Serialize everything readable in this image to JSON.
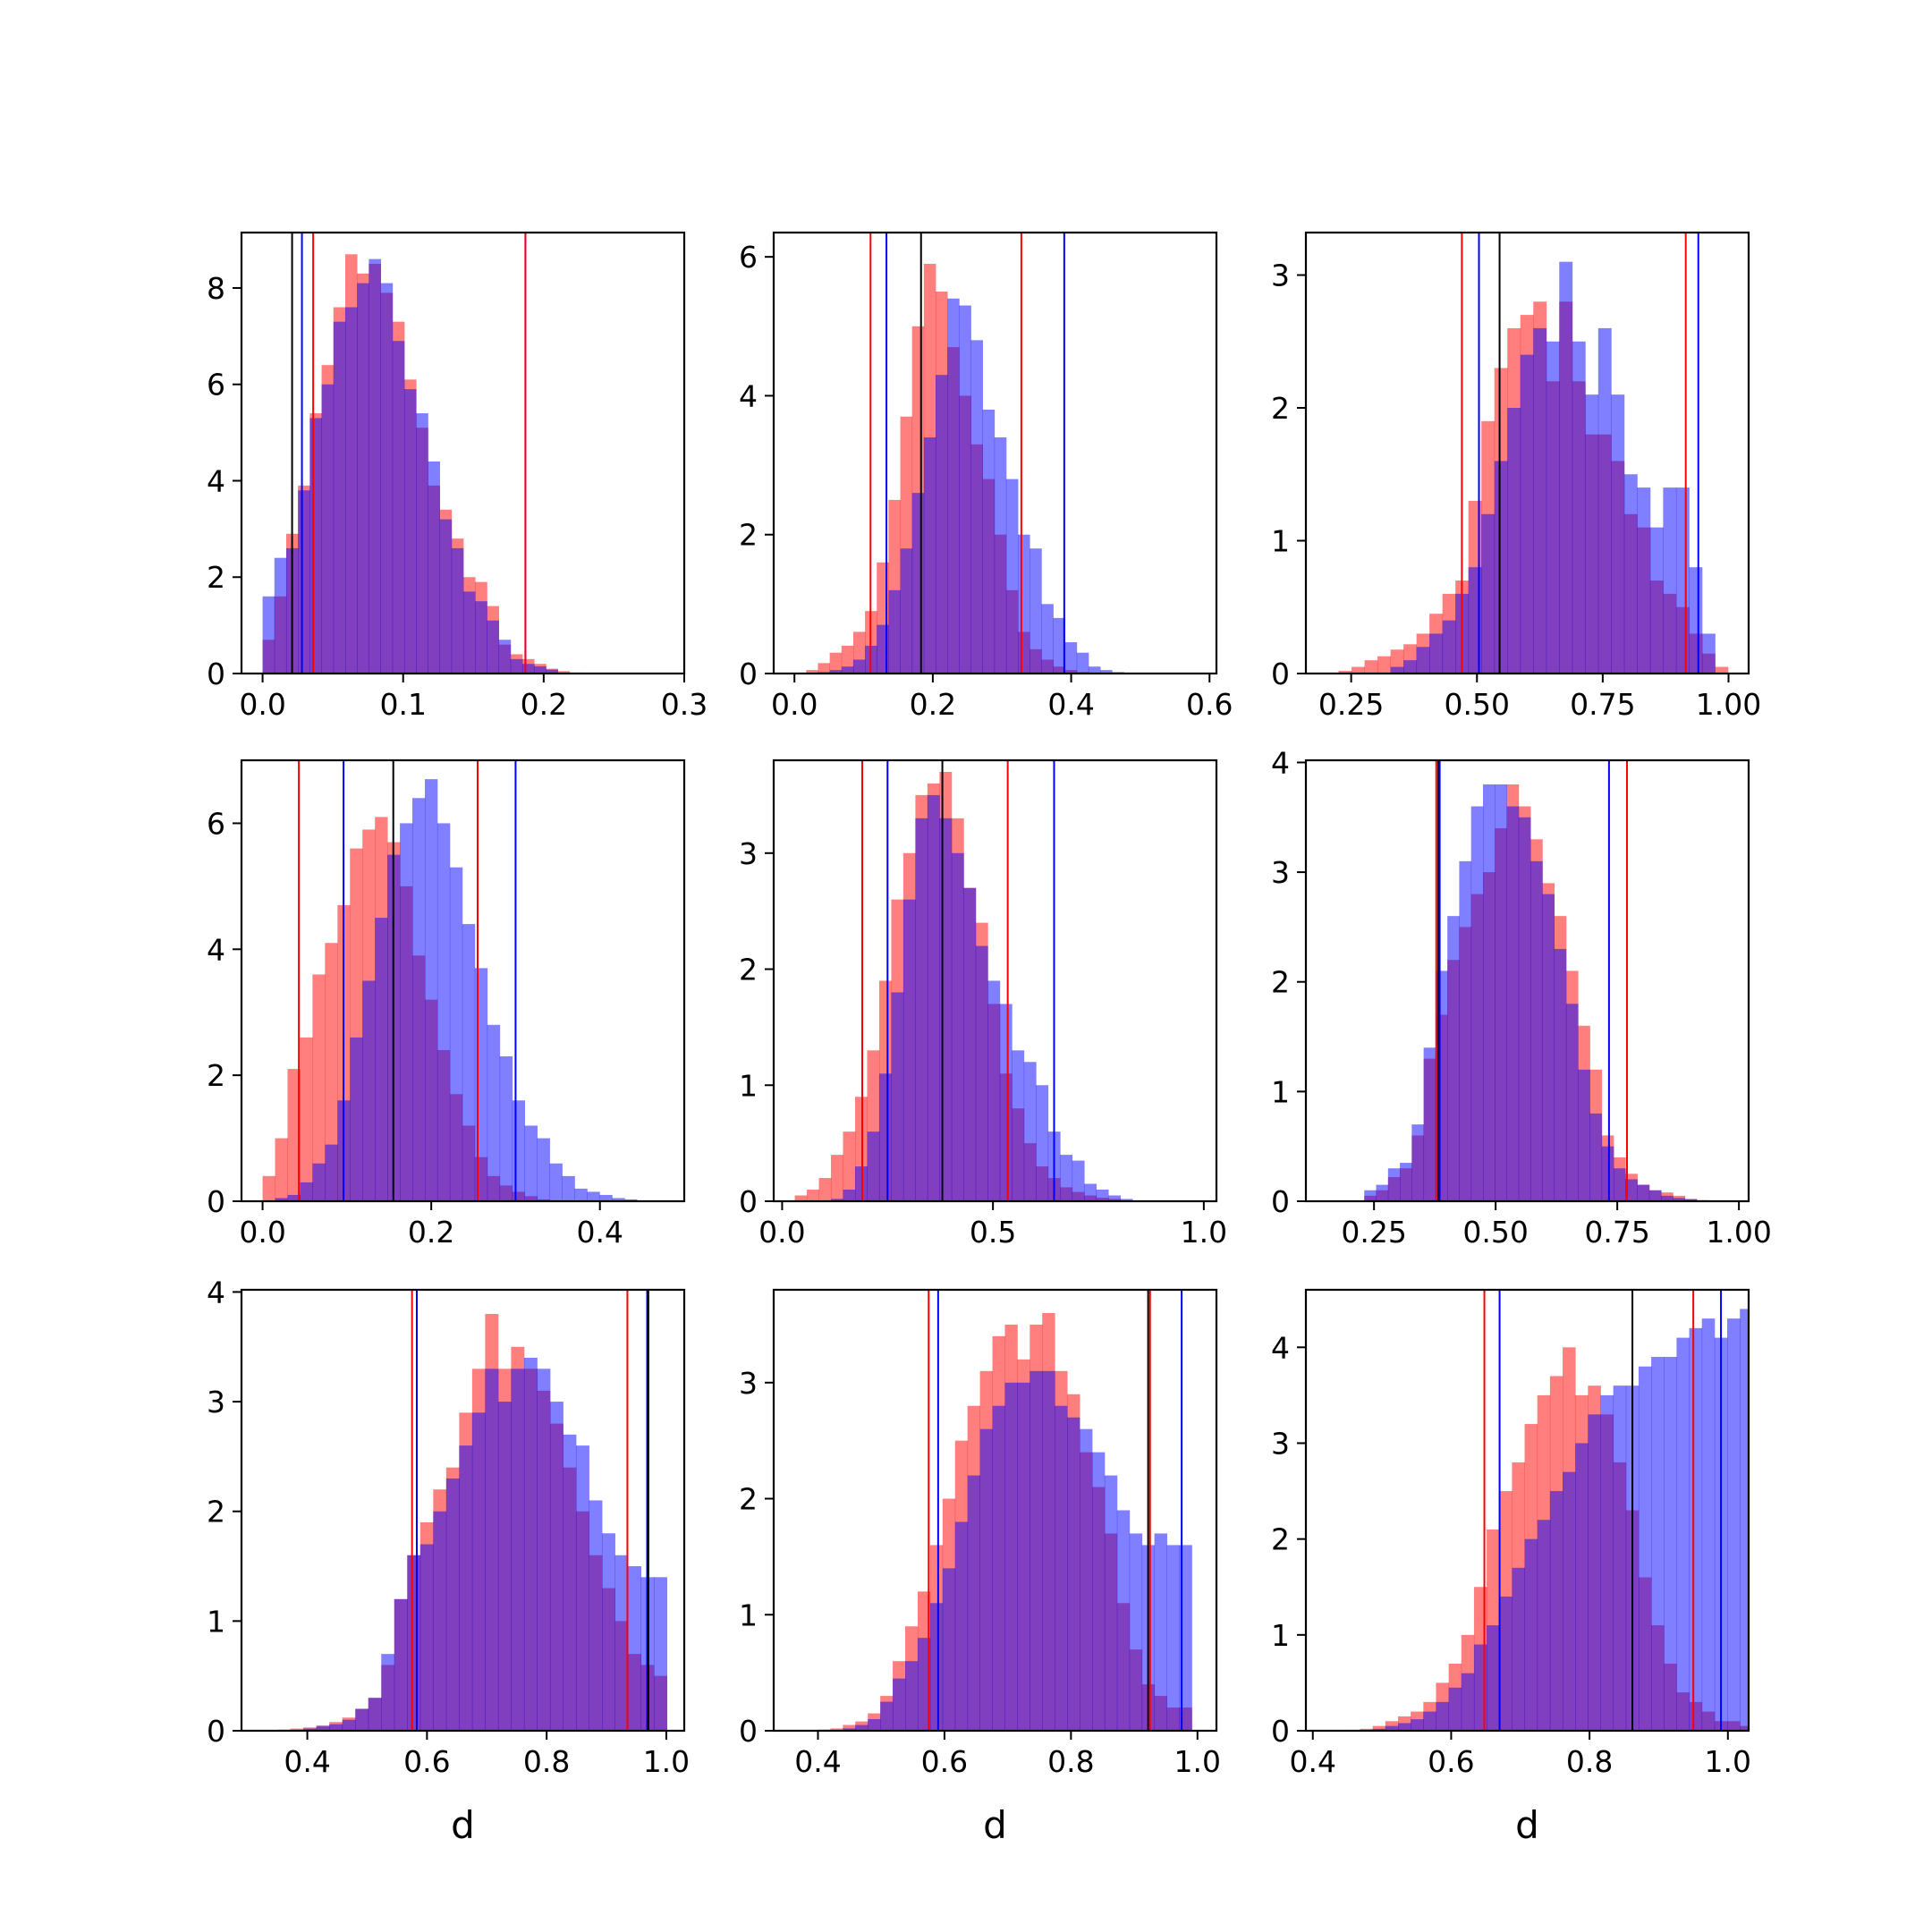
{
  "colors": {
    "red": "#ff0000",
    "blue": "#0000ff",
    "black": "#000000",
    "red_fill": "#ff7f7f",
    "blue_fill": "#7f7fff",
    "overlap_fill": "#803fbf"
  },
  "chart_data": [
    {
      "type": "bar",
      "row": 0,
      "col": 0,
      "xlim": [
        -0.015,
        0.3
      ],
      "ylim": [
        0,
        9.15
      ],
      "xticks": [
        0.0,
        0.1,
        0.2,
        0.3
      ],
      "xtick_labels": [
        "0.0",
        "0.1",
        "0.2",
        "0.3"
      ],
      "yticks": [
        0,
        2,
        4,
        6,
        8
      ],
      "ytick_labels": [
        "0",
        "2",
        "4",
        "6",
        "8"
      ],
      "xlabel": "",
      "red_hist": {
        "x0": 0.0,
        "bin_width": 0.0084,
        "values": [
          0.7,
          1.6,
          2.9,
          3.9,
          5.4,
          6.4,
          7.6,
          8.7,
          8.3,
          8.5,
          7.9,
          7.3,
          6.1,
          5.1,
          3.9,
          3.4,
          2.8,
          2.0,
          1.9,
          1.4,
          0.6,
          0.4,
          0.3,
          0.2,
          0.1,
          0.05,
          0.02,
          0.01,
          0.0,
          0.0
        ]
      },
      "blue_hist": {
        "x0": 0.0,
        "bin_width": 0.0084,
        "values": [
          1.6,
          2.4,
          2.6,
          3.8,
          5.3,
          6.0,
          7.3,
          7.6,
          8.1,
          8.6,
          8.1,
          6.9,
          5.9,
          5.4,
          4.4,
          3.2,
          2.6,
          1.7,
          1.5,
          1.1,
          0.7,
          0.3,
          0.2,
          0.15,
          0.08,
          0.0,
          0.0,
          0.0,
          0.0,
          0.0
        ]
      },
      "vlines": [
        {
          "x": 0.021,
          "color": "black"
        },
        {
          "x": 0.028,
          "color": "blue"
        },
        {
          "x": 0.036,
          "color": "red"
        },
        {
          "x": 0.187,
          "color": "blue"
        },
        {
          "x": 0.187,
          "color": "red"
        }
      ]
    },
    {
      "type": "bar",
      "row": 0,
      "col": 1,
      "xlim": [
        -0.03,
        0.61
      ],
      "ylim": [
        0,
        6.35
      ],
      "xticks": [
        0.0,
        0.2,
        0.4,
        0.6
      ],
      "xtick_labels": [
        "0.0",
        "0.2",
        "0.4",
        "0.6"
      ],
      "yticks": [
        0,
        2,
        4,
        6
      ],
      "ytick_labels": [
        "0",
        "2",
        "4",
        "6"
      ],
      "xlabel": "",
      "red_hist": {
        "x0": 0.0,
        "bin_width": 0.017,
        "values": [
          0.01,
          0.05,
          0.15,
          0.3,
          0.4,
          0.6,
          0.9,
          1.6,
          2.5,
          3.7,
          5.0,
          5.9,
          5.5,
          4.7,
          4.0,
          3.3,
          2.8,
          2.0,
          1.2,
          0.6,
          0.35,
          0.2,
          0.1,
          0.05,
          0.02,
          0.01,
          0.0,
          0.0,
          0.0,
          0.0,
          0.0,
          0.0,
          0.0,
          0.0
        ]
      },
      "blue_hist": {
        "x0": 0.0,
        "bin_width": 0.017,
        "values": [
          0.0,
          0.0,
          0.02,
          0.05,
          0.1,
          0.2,
          0.4,
          0.7,
          1.2,
          1.8,
          2.6,
          3.4,
          4.3,
          5.4,
          5.3,
          4.8,
          3.8,
          3.4,
          2.8,
          2.0,
          1.8,
          1.0,
          0.8,
          0.45,
          0.3,
          0.1,
          0.05,
          0.02,
          0.01,
          0.0,
          0.0,
          0.0,
          0.0,
          0.0
        ]
      },
      "vlines": [
        {
          "x": 0.11,
          "color": "red"
        },
        {
          "x": 0.133,
          "color": "blue"
        },
        {
          "x": 0.183,
          "color": "black"
        },
        {
          "x": 0.328,
          "color": "red"
        },
        {
          "x": 0.39,
          "color": "blue"
        }
      ]
    },
    {
      "type": "bar",
      "row": 0,
      "col": 2,
      "xlim": [
        0.16,
        1.04
      ],
      "ylim": [
        0,
        3.32
      ],
      "xticks": [
        0.25,
        0.5,
        0.75,
        1.0
      ],
      "xtick_labels": [
        "0.25",
        "0.50",
        "0.75",
        "1.00"
      ],
      "yticks": [
        0,
        1,
        2,
        3
      ],
      "ytick_labels": [
        "0",
        "1",
        "2",
        "3"
      ],
      "xlabel": "",
      "red_hist": {
        "x0": 0.225,
        "bin_width": 0.0258,
        "values": [
          0.02,
          0.05,
          0.1,
          0.13,
          0.18,
          0.22,
          0.3,
          0.45,
          0.6,
          0.7,
          1.3,
          1.9,
          2.3,
          2.6,
          2.7,
          2.8,
          2.2,
          2.8,
          2.2,
          1.8,
          1.8,
          1.6,
          1.2,
          1.1,
          0.7,
          0.6,
          0.5,
          0.3,
          0.15,
          0.05,
          0.0
        ]
      },
      "blue_hist": {
        "x0": 0.225,
        "bin_width": 0.0258,
        "values": [
          0.0,
          0.0,
          0.0,
          0.0,
          0.05,
          0.1,
          0.2,
          0.3,
          0.4,
          0.6,
          0.8,
          1.2,
          1.6,
          2.0,
          2.4,
          2.6,
          2.5,
          3.1,
          2.5,
          2.1,
          2.6,
          2.1,
          1.5,
          1.4,
          1.1,
          1.4,
          1.4,
          0.8,
          0.3,
          0.0,
          0.0
        ]
      },
      "vlines": [
        {
          "x": 0.47,
          "color": "red"
        },
        {
          "x": 0.504,
          "color": "blue"
        },
        {
          "x": 0.545,
          "color": "black"
        },
        {
          "x": 0.915,
          "color": "red"
        },
        {
          "x": 0.94,
          "color": "blue"
        }
      ]
    },
    {
      "type": "bar",
      "row": 1,
      "col": 0,
      "xlim": [
        -0.025,
        0.5
      ],
      "ylim": [
        0,
        7.0
      ],
      "xticks": [
        0.0,
        0.2,
        0.4
      ],
      "xtick_labels": [
        "0.0",
        "0.2",
        "0.4"
      ],
      "yticks": [
        0,
        2,
        4,
        6
      ],
      "ytick_labels": [
        "0",
        "2",
        "4",
        "6"
      ],
      "xlabel": "",
      "red_hist": {
        "x0": 0.0,
        "bin_width": 0.0148,
        "values": [
          0.4,
          1.0,
          2.1,
          2.6,
          3.6,
          4.1,
          4.7,
          5.6,
          5.9,
          6.1,
          5.7,
          5.0,
          3.9,
          3.2,
          2.4,
          1.7,
          1.2,
          0.7,
          0.4,
          0.25,
          0.15,
          0.08,
          0.03,
          0.01,
          0.0,
          0.0,
          0.0,
          0.0,
          0.0,
          0.0,
          0.0,
          0.0,
          0.0
        ]
      },
      "blue_hist": {
        "x0": 0.0,
        "bin_width": 0.0148,
        "values": [
          0.0,
          0.05,
          0.1,
          0.3,
          0.6,
          0.9,
          1.6,
          2.6,
          3.5,
          4.5,
          5.5,
          6.0,
          6.4,
          6.7,
          6.0,
          5.3,
          4.4,
          3.7,
          2.8,
          2.3,
          1.6,
          1.2,
          1.0,
          0.6,
          0.4,
          0.2,
          0.15,
          0.1,
          0.05,
          0.03,
          0.01,
          0.0,
          0.0
        ]
      },
      "vlines": [
        {
          "x": 0.043,
          "color": "red"
        },
        {
          "x": 0.096,
          "color": "blue"
        },
        {
          "x": 0.155,
          "color": "black"
        },
        {
          "x": 0.255,
          "color": "red"
        },
        {
          "x": 0.3,
          "color": "blue"
        }
      ]
    },
    {
      "type": "bar",
      "row": 1,
      "col": 1,
      "xlim": [
        -0.02,
        1.03
      ],
      "ylim": [
        0,
        3.8
      ],
      "xticks": [
        0.0,
        0.5,
        1.0
      ],
      "xtick_labels": [
        "0.0",
        "0.5",
        "1.0"
      ],
      "yticks": [
        0,
        1,
        2,
        3
      ],
      "ytick_labels": [
        "0",
        "1",
        "2",
        "3"
      ],
      "xlabel": "",
      "red_hist": {
        "x0": 0.03,
        "bin_width": 0.0286,
        "values": [
          0.05,
          0.1,
          0.2,
          0.4,
          0.6,
          0.9,
          1.3,
          1.9,
          2.6,
          3.0,
          3.5,
          3.6,
          3.7,
          3.3,
          2.7,
          2.4,
          1.7,
          1.1,
          0.8,
          0.5,
          0.3,
          0.2,
          0.12,
          0.08,
          0.05,
          0.03,
          0.02,
          0.0,
          0.0,
          0.0,
          0.0
        ]
      },
      "blue_hist": {
        "x0": 0.03,
        "bin_width": 0.0286,
        "values": [
          0.0,
          0.0,
          0.0,
          0.02,
          0.1,
          0.3,
          0.6,
          1.1,
          1.8,
          2.6,
          3.3,
          3.5,
          3.3,
          3.0,
          2.7,
          2.2,
          1.9,
          1.7,
          1.3,
          1.2,
          1.0,
          0.6,
          0.4,
          0.35,
          0.15,
          0.1,
          0.05,
          0.02,
          0.0,
          0.0,
          0.0
        ]
      },
      "vlines": [
        {
          "x": 0.19,
          "color": "red"
        },
        {
          "x": 0.25,
          "color": "blue"
        },
        {
          "x": 0.38,
          "color": "black"
        },
        {
          "x": 0.535,
          "color": "red"
        },
        {
          "x": 0.645,
          "color": "blue"
        }
      ]
    },
    {
      "type": "bar",
      "row": 1,
      "col": 2,
      "xlim": [
        0.11,
        1.02
      ],
      "ylim": [
        0,
        4.02
      ],
      "xticks": [
        0.25,
        0.5,
        0.75,
        1.0
      ],
      "xtick_labels": [
        "0.25",
        "0.50",
        "0.75",
        "1.00"
      ],
      "yticks": [
        0,
        1,
        2,
        3,
        4
      ],
      "ytick_labels": [
        "0",
        "1",
        "2",
        "3",
        "4"
      ],
      "xlabel": "",
      "red_hist": {
        "x0": 0.23,
        "bin_width": 0.0244,
        "values": [
          0.05,
          0.1,
          0.22,
          0.3,
          0.6,
          1.3,
          1.7,
          2.2,
          2.5,
          2.8,
          3.0,
          3.4,
          3.8,
          3.6,
          3.3,
          2.9,
          2.6,
          2.1,
          1.6,
          1.2,
          0.6,
          0.4,
          0.25,
          0.15,
          0.1,
          0.08,
          0.05,
          0.02,
          0.01,
          0.0,
          0.0,
          0.0
        ]
      },
      "blue_hist": {
        "x0": 0.23,
        "bin_width": 0.0244,
        "values": [
          0.1,
          0.15,
          0.3,
          0.35,
          0.7,
          1.4,
          2.1,
          2.6,
          3.1,
          3.6,
          3.8,
          3.8,
          3.6,
          3.5,
          3.1,
          2.8,
          2.3,
          1.8,
          1.2,
          0.8,
          0.5,
          0.3,
          0.2,
          0.15,
          0.1,
          0.05,
          0.03,
          0.02,
          0.0,
          0.0,
          0.0,
          0.0
        ]
      },
      "vlines": [
        {
          "x": 0.378,
          "color": "red"
        },
        {
          "x": 0.382,
          "color": "black"
        },
        {
          "x": 0.385,
          "color": "blue"
        },
        {
          "x": 0.733,
          "color": "blue"
        },
        {
          "x": 0.77,
          "color": "red"
        }
      ]
    },
    {
      "type": "bar",
      "row": 2,
      "col": 0,
      "xlim": [
        0.29,
        1.03
      ],
      "ylim": [
        0,
        4.02
      ],
      "xticks": [
        0.4,
        0.6,
        0.8,
        1.0
      ],
      "xtick_labels": [
        "0.4",
        "0.6",
        "0.8",
        "1.0"
      ],
      "yticks": [
        0,
        1,
        2,
        3,
        4
      ],
      "ytick_labels": [
        "0",
        "1",
        "2",
        "3",
        "4"
      ],
      "xlabel": "d",
      "red_hist": {
        "x0": 0.35,
        "bin_width": 0.0217,
        "values": [
          0.01,
          0.02,
          0.03,
          0.05,
          0.08,
          0.12,
          0.2,
          0.3,
          0.6,
          1.2,
          1.6,
          1.9,
          2.2,
          2.4,
          2.9,
          3.3,
          3.8,
          3.3,
          3.5,
          3.3,
          3.1,
          2.8,
          2.4,
          2.0,
          1.6,
          1.3,
          1.0,
          0.7,
          0.6,
          0.5
        ]
      },
      "blue_hist": {
        "x0": 0.35,
        "bin_width": 0.0217,
        "values": [
          0.0,
          0.0,
          0.02,
          0.04,
          0.06,
          0.1,
          0.2,
          0.3,
          0.7,
          1.2,
          1.6,
          1.7,
          2.0,
          2.3,
          2.6,
          2.9,
          3.3,
          3.0,
          3.3,
          3.4,
          3.3,
          3.0,
          2.7,
          2.6,
          2.1,
          1.8,
          1.6,
          1.5,
          1.4,
          1.4
        ]
      },
      "vlines": [
        {
          "x": 0.575,
          "color": "red"
        },
        {
          "x": 0.583,
          "color": "blue"
        },
        {
          "x": 0.935,
          "color": "red"
        },
        {
          "x": 0.968,
          "color": "blue"
        },
        {
          "x": 0.97,
          "color": "black"
        }
      ]
    },
    {
      "type": "bar",
      "row": 2,
      "col": 1,
      "xlim": [
        0.33,
        1.03
      ],
      "ylim": [
        0,
        3.8
      ],
      "xticks": [
        0.4,
        0.6,
        0.8,
        1.0
      ],
      "xtick_labels": [
        "0.4",
        "0.6",
        "0.8",
        "1.0"
      ],
      "yticks": [
        0,
        1,
        2,
        3
      ],
      "ytick_labels": [
        "0",
        "1",
        "2",
        "3"
      ],
      "xlabel": "d",
      "red_hist": {
        "x0": 0.4,
        "bin_width": 0.0197,
        "values": [
          0.01,
          0.02,
          0.05,
          0.08,
          0.15,
          0.3,
          0.6,
          0.9,
          1.2,
          1.6,
          2.0,
          2.5,
          2.8,
          3.1,
          3.4,
          3.5,
          3.2,
          3.5,
          3.6,
          3.1,
          2.9,
          2.4,
          2.1,
          1.7,
          1.1,
          0.7,
          0.4,
          0.3,
          0.2,
          0.2
        ]
      },
      "blue_hist": {
        "x0": 0.4,
        "bin_width": 0.0197,
        "values": [
          0.0,
          0.0,
          0.02,
          0.05,
          0.1,
          0.25,
          0.45,
          0.6,
          0.8,
          1.1,
          1.4,
          1.8,
          2.2,
          2.6,
          2.8,
          3.0,
          3.0,
          3.1,
          3.1,
          2.8,
          2.7,
          2.6,
          2.4,
          2.2,
          1.9,
          1.7,
          1.6,
          1.7,
          1.6,
          1.6
        ]
      },
      "vlines": [
        {
          "x": 0.575,
          "color": "red"
        },
        {
          "x": 0.59,
          "color": "blue"
        },
        {
          "x": 0.922,
          "color": "black"
        },
        {
          "x": 0.925,
          "color": "red"
        },
        {
          "x": 0.975,
          "color": "blue"
        }
      ]
    },
    {
      "type": "bar",
      "row": 2,
      "col": 2,
      "xlim": [
        0.39,
        1.03
      ],
      "ylim": [
        0,
        4.6
      ],
      "xticks": [
        0.4,
        0.6,
        0.8,
        1.0
      ],
      "xtick_labels": [
        "0.4",
        "0.6",
        "0.8",
        "1.0"
      ],
      "yticks": [
        0,
        1,
        2,
        3,
        4
      ],
      "ytick_labels": [
        "0",
        "1",
        "2",
        "3",
        "4"
      ],
      "xlabel": "d",
      "red_hist": {
        "x0": 0.45,
        "bin_width": 0.0183,
        "values": [
          0.01,
          0.02,
          0.05,
          0.1,
          0.15,
          0.2,
          0.3,
          0.5,
          0.7,
          1.0,
          1.5,
          2.1,
          2.5,
          2.8,
          3.2,
          3.5,
          3.7,
          4.0,
          3.5,
          3.6,
          3.3,
          2.8,
          2.3,
          1.6,
          1.1,
          0.7,
          0.4,
          0.3,
          0.2,
          0.1,
          0.1,
          0.05
        ]
      },
      "blue_hist": {
        "x0": 0.45,
        "bin_width": 0.0183,
        "values": [
          0.0,
          0.0,
          0.02,
          0.05,
          0.08,
          0.12,
          0.2,
          0.3,
          0.45,
          0.6,
          0.9,
          1.1,
          1.4,
          1.7,
          2.0,
          2.2,
          2.5,
          2.7,
          3.0,
          3.3,
          3.5,
          3.6,
          3.6,
          3.8,
          3.9,
          3.9,
          4.1,
          4.2,
          4.3,
          4.1,
          4.3,
          4.4
        ]
      },
      "vlines": [
        {
          "x": 0.648,
          "color": "red"
        },
        {
          "x": 0.67,
          "color": "blue"
        },
        {
          "x": 0.862,
          "color": "black"
        },
        {
          "x": 0.95,
          "color": "red"
        },
        {
          "x": 0.99,
          "color": "blue"
        }
      ]
    }
  ]
}
